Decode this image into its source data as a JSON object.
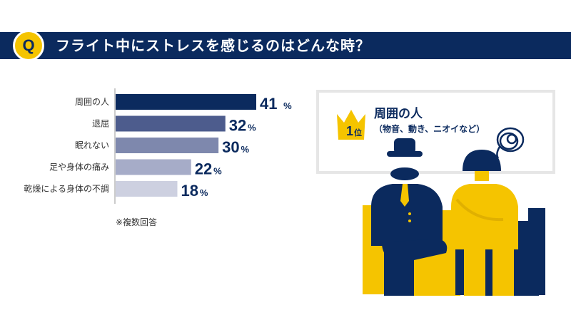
{
  "header": {
    "badge": "Q",
    "title": "フライト中にストレスを感じるのはどんな時？"
  },
  "chart_data": {
    "type": "bar",
    "orientation": "horizontal",
    "categories": [
      "周囲の人",
      "退屈",
      "眠れない",
      "足や身体の痛み",
      "乾燥による身体の不調"
    ],
    "values": [
      41,
      32,
      30,
      22,
      18
    ],
    "unit": "%",
    "bar_colors": [
      "#0b2a5e",
      "#4d5c8d",
      "#7e88ad",
      "#a6acc8",
      "#cdd0e0"
    ],
    "title": "",
    "xlabel": "",
    "ylabel": ""
  },
  "note": "※複数回答",
  "rank_panel": {
    "rank_label": "1",
    "rank_suffix": "位",
    "title": "周囲の人",
    "subtitle": "（物音、動き、ニオイなど）"
  },
  "colors": {
    "navy": "#0b2a5e",
    "yellow": "#f5c400",
    "gray_border": "#e6e6e6"
  }
}
